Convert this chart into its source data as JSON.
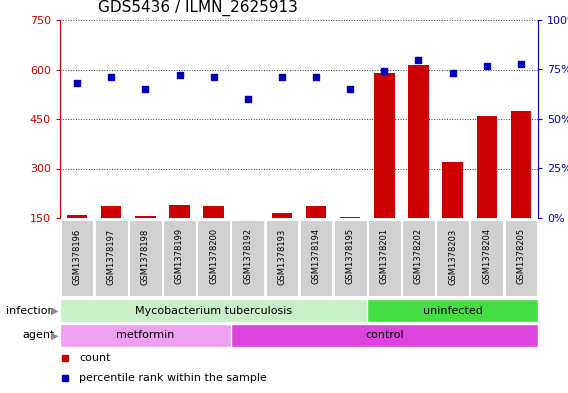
{
  "title": "GDS5436 / ILMN_2625913",
  "samples": [
    "GSM1378196",
    "GSM1378197",
    "GSM1378198",
    "GSM1378199",
    "GSM1378200",
    "GSM1378192",
    "GSM1378193",
    "GSM1378194",
    "GSM1378195",
    "GSM1378201",
    "GSM1378202",
    "GSM1378203",
    "GSM1378204",
    "GSM1378205"
  ],
  "counts": [
    158,
    185,
    155,
    190,
    185,
    148,
    165,
    185,
    152,
    590,
    615,
    320,
    460,
    475
  ],
  "percentiles": [
    68,
    71,
    65,
    72,
    71,
    60,
    71,
    71,
    65,
    74,
    80,
    73,
    77,
    78
  ],
  "ylim_left": [
    150,
    750
  ],
  "ylim_right": [
    0,
    100
  ],
  "yticks_left": [
    150,
    300,
    450,
    600,
    750
  ],
  "yticks_right": [
    0,
    25,
    50,
    75,
    100
  ],
  "infection_groups": [
    {
      "label": "Mycobacterium tuberculosis",
      "start": 0,
      "end": 9,
      "color": "#C8F0C8"
    },
    {
      "label": "uninfected",
      "start": 9,
      "end": 14,
      "color": "#44DD44"
    }
  ],
  "agent_groups": [
    {
      "label": "metformin",
      "start": 0,
      "end": 5,
      "color": "#F0A0F0"
    },
    {
      "label": "control",
      "start": 5,
      "end": 14,
      "color": "#DD44DD"
    }
  ],
  "bar_color": "#CC0000",
  "dot_color": "#0000BB",
  "grid_color": "#000000",
  "sample_box_color": "#D0D0D0",
  "left_axis_color": "#CC0000",
  "right_axis_color": "#0000BB",
  "title_fontsize": 11
}
